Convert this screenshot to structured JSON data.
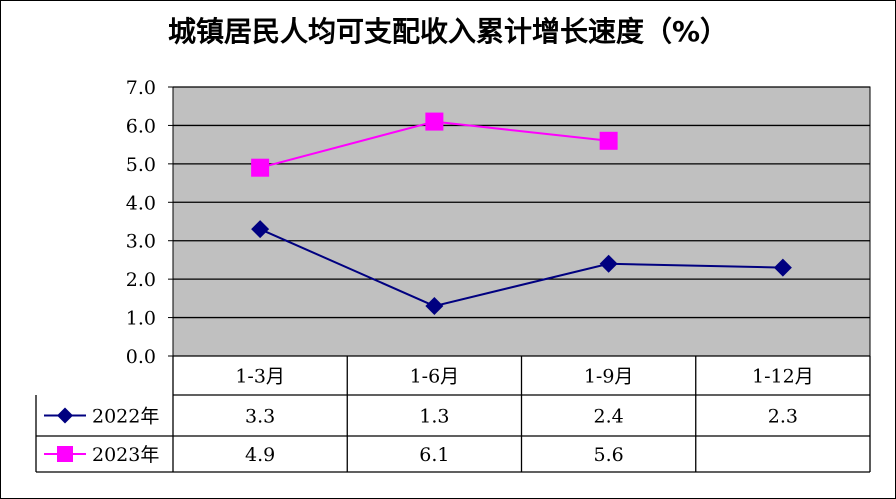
{
  "chart_data": {
    "type": "line",
    "title": "城镇居民人均可支配收入累计增长速度（%）",
    "categories": [
      "1-3月",
      "1-6月",
      "1-9月",
      "1-12月"
    ],
    "series": [
      {
        "name": "2022年",
        "values": [
          3.3,
          1.3,
          2.4,
          2.3
        ],
        "labels": [
          "3.3",
          "1.3",
          "2.4",
          "2.3"
        ],
        "color": "#000080",
        "marker": "diamond"
      },
      {
        "name": "2023年",
        "values": [
          4.9,
          6.1,
          5.6,
          null
        ],
        "labels": [
          "4.9",
          "6.1",
          "5.6",
          ""
        ],
        "color": "#FF00FF",
        "marker": "square"
      }
    ],
    "ylim": [
      0,
      7
    ],
    "yticks": [
      "0.0",
      "1.0",
      "2.0",
      "3.0",
      "4.0",
      "5.0",
      "6.0",
      "7.0"
    ],
    "grid": true,
    "plot_background": "#C0C0C0",
    "data_table": true
  }
}
